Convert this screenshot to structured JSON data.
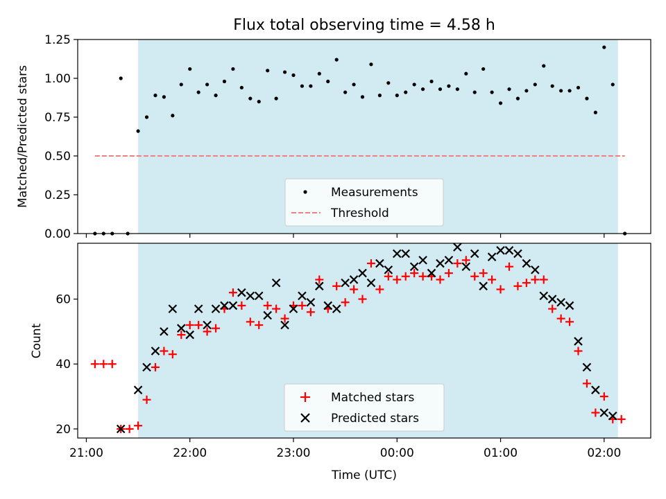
{
  "chart_data": [
    {
      "type": "scatter",
      "title": "Flux total observing time = 4.58 h",
      "xlabel": "",
      "ylabel": "Matched/Predicted stars",
      "xlim": [
        "20:55",
        "02:27"
      ],
      "ylim": [
        0,
        1.25
      ],
      "yticks": [
        "0.00",
        "0.25",
        "0.50",
        "0.75",
        "1.00",
        "1.25"
      ],
      "legend_position": "lower center",
      "shaded_interval": {
        "start": "21:30",
        "end": "02:08",
        "color": "#add8e6"
      },
      "series": [
        {
          "name": "Measurements",
          "marker": "dot",
          "color": "#000000",
          "points": [
            [
              "21:05",
              0.0
            ],
            [
              "21:10",
              0.0
            ],
            [
              "21:15",
              0.0
            ],
            [
              "21:20",
              1.0
            ],
            [
              "21:24",
              0.0
            ],
            [
              "21:30",
              0.66
            ],
            [
              "21:35",
              0.75
            ],
            [
              "21:40",
              0.89
            ],
            [
              "21:45",
              0.88
            ],
            [
              "21:50",
              0.76
            ],
            [
              "21:55",
              0.96
            ],
            [
              "22:00",
              1.06
            ],
            [
              "22:05",
              0.91
            ],
            [
              "22:10",
              0.96
            ],
            [
              "22:15",
              0.89
            ],
            [
              "22:20",
              0.98
            ],
            [
              "22:25",
              1.06
            ],
            [
              "22:30",
              0.94
            ],
            [
              "22:35",
              0.87
            ],
            [
              "22:40",
              0.85
            ],
            [
              "22:45",
              1.05
            ],
            [
              "22:50",
              0.87
            ],
            [
              "22:55",
              1.04
            ],
            [
              "23:00",
              1.02
            ],
            [
              "23:05",
              0.95
            ],
            [
              "23:10",
              0.95
            ],
            [
              "23:15",
              1.03
            ],
            [
              "23:20",
              0.98
            ],
            [
              "23:25",
              1.12
            ],
            [
              "23:30",
              0.91
            ],
            [
              "23:35",
              0.96
            ],
            [
              "23:40",
              0.88
            ],
            [
              "23:45",
              1.09
            ],
            [
              "23:50",
              0.89
            ],
            [
              "23:55",
              0.97
            ],
            [
              "00:00",
              0.89
            ],
            [
              "00:05",
              0.91
            ],
            [
              "00:10",
              0.96
            ],
            [
              "00:15",
              0.93
            ],
            [
              "00:20",
              0.98
            ],
            [
              "00:25",
              0.93
            ],
            [
              "00:30",
              0.95
            ],
            [
              "00:35",
              0.93
            ],
            [
              "00:40",
              1.03
            ],
            [
              "00:45",
              0.91
            ],
            [
              "00:50",
              1.06
            ],
            [
              "00:55",
              0.91
            ],
            [
              "01:00",
              0.84
            ],
            [
              "01:05",
              0.93
            ],
            [
              "01:10",
              0.87
            ],
            [
              "01:15",
              0.92
            ],
            [
              "01:20",
              0.96
            ],
            [
              "01:25",
              1.08
            ],
            [
              "01:30",
              0.95
            ],
            [
              "01:35",
              0.92
            ],
            [
              "01:40",
              0.92
            ],
            [
              "01:45",
              0.94
            ],
            [
              "01:50",
              0.87
            ],
            [
              "01:55",
              0.78
            ],
            [
              "02:00",
              1.2
            ],
            [
              "02:05",
              0.96
            ],
            [
              "02:12",
              0.0
            ]
          ]
        },
        {
          "name": "Threshold",
          "marker": "dashed-line",
          "color": "#f08080",
          "points": [
            [
              "21:05",
              0.5
            ],
            [
              "02:12",
              0.5
            ]
          ]
        }
      ]
    },
    {
      "type": "scatter",
      "title": "",
      "xlabel": "Time (UTC)",
      "ylabel": "Count",
      "xlim": [
        "20:55",
        "02:27"
      ],
      "ylim": [
        17.2,
        77.2
      ],
      "yticks": [
        "20",
        "40",
        "60"
      ],
      "xticks": [
        "21:00",
        "22:00",
        "23:00",
        "00:00",
        "01:00",
        "02:00"
      ],
      "legend_position": "lower center",
      "shaded_interval": {
        "start": "21:30",
        "end": "02:08",
        "color": "#add8e6"
      },
      "series": [
        {
          "name": "Matched stars",
          "marker": "plus",
          "color": "#ff0000",
          "points": [
            [
              "21:05",
              40
            ],
            [
              "21:10",
              40
            ],
            [
              "21:15",
              40
            ],
            [
              "21:20",
              20
            ],
            [
              "21:25",
              20
            ],
            [
              "21:30",
              21
            ],
            [
              "21:35",
              29
            ],
            [
              "21:40",
              39
            ],
            [
              "21:45",
              44
            ],
            [
              "21:50",
              43
            ],
            [
              "21:55",
              49
            ],
            [
              "22:00",
              52
            ],
            [
              "22:05",
              52
            ],
            [
              "22:10",
              50
            ],
            [
              "22:15",
              51
            ],
            [
              "22:20",
              57
            ],
            [
              "22:25",
              62
            ],
            [
              "22:30",
              58
            ],
            [
              "22:35",
              53
            ],
            [
              "22:40",
              52
            ],
            [
              "22:45",
              58
            ],
            [
              "22:50",
              57
            ],
            [
              "22:55",
              54
            ],
            [
              "23:00",
              58
            ],
            [
              "23:05",
              58
            ],
            [
              "23:10",
              56
            ],
            [
              "23:15",
              66
            ],
            [
              "23:20",
              57
            ],
            [
              "23:25",
              64
            ],
            [
              "23:30",
              59
            ],
            [
              "23:35",
              63
            ],
            [
              "23:40",
              60
            ],
            [
              "23:45",
              71
            ],
            [
              "23:50",
              63
            ],
            [
              "23:55",
              67
            ],
            [
              "00:00",
              66
            ],
            [
              "00:05",
              67
            ],
            [
              "00:10",
              68
            ],
            [
              "00:15",
              67
            ],
            [
              "00:20",
              67
            ],
            [
              "00:25",
              66
            ],
            [
              "00:30",
              68
            ],
            [
              "00:35",
              71
            ],
            [
              "00:40",
              72
            ],
            [
              "00:45",
              67
            ],
            [
              "00:50",
              68
            ],
            [
              "00:55",
              66
            ],
            [
              "01:00",
              63
            ],
            [
              "01:05",
              70
            ],
            [
              "01:10",
              64
            ],
            [
              "01:15",
              65
            ],
            [
              "01:20",
              66
            ],
            [
              "01:25",
              66
            ],
            [
              "01:30",
              57
            ],
            [
              "01:35",
              54
            ],
            [
              "01:40",
              53
            ],
            [
              "01:45",
              44
            ],
            [
              "01:50",
              34
            ],
            [
              "01:55",
              25
            ],
            [
              "02:00",
              30
            ],
            [
              "02:05",
              23
            ],
            [
              "02:10",
              23
            ]
          ]
        },
        {
          "name": "Predicted stars",
          "marker": "x",
          "color": "#000000",
          "points": [
            [
              "21:20",
              20
            ],
            [
              "21:30",
              32
            ],
            [
              "21:35",
              39
            ],
            [
              "21:40",
              44
            ],
            [
              "21:45",
              50
            ],
            [
              "21:50",
              57
            ],
            [
              "21:55",
              51
            ],
            [
              "22:00",
              49
            ],
            [
              "22:05",
              57
            ],
            [
              "22:10",
              52
            ],
            [
              "22:15",
              57
            ],
            [
              "22:20",
              58
            ],
            [
              "22:25",
              58
            ],
            [
              "22:30",
              62
            ],
            [
              "22:35",
              61
            ],
            [
              "22:40",
              61
            ],
            [
              "22:45",
              55
            ],
            [
              "22:50",
              65
            ],
            [
              "22:55",
              52
            ],
            [
              "23:00",
              57
            ],
            [
              "23:05",
              61
            ],
            [
              "23:10",
              59
            ],
            [
              "23:15",
              64
            ],
            [
              "23:20",
              58
            ],
            [
              "23:25",
              57
            ],
            [
              "23:30",
              65
            ],
            [
              "23:35",
              66
            ],
            [
              "23:40",
              68
            ],
            [
              "23:45",
              65
            ],
            [
              "23:50",
              71
            ],
            [
              "23:55",
              69
            ],
            [
              "00:00",
              74
            ],
            [
              "00:05",
              74
            ],
            [
              "00:10",
              70
            ],
            [
              "00:15",
              72
            ],
            [
              "00:20",
              68
            ],
            [
              "00:25",
              71
            ],
            [
              "00:30",
              72
            ],
            [
              "00:35",
              76
            ],
            [
              "00:40",
              70
            ],
            [
              "00:45",
              74
            ],
            [
              "00:50",
              64
            ],
            [
              "00:55",
              73
            ],
            [
              "01:00",
              75
            ],
            [
              "01:05",
              75
            ],
            [
              "01:10",
              74
            ],
            [
              "01:15",
              71
            ],
            [
              "01:20",
              69
            ],
            [
              "01:25",
              61
            ],
            [
              "01:30",
              60
            ],
            [
              "01:35",
              59
            ],
            [
              "01:40",
              58
            ],
            [
              "01:45",
              47
            ],
            [
              "01:50",
              39
            ],
            [
              "01:55",
              32
            ],
            [
              "02:00",
              25
            ],
            [
              "02:05",
              24
            ]
          ]
        }
      ]
    }
  ]
}
